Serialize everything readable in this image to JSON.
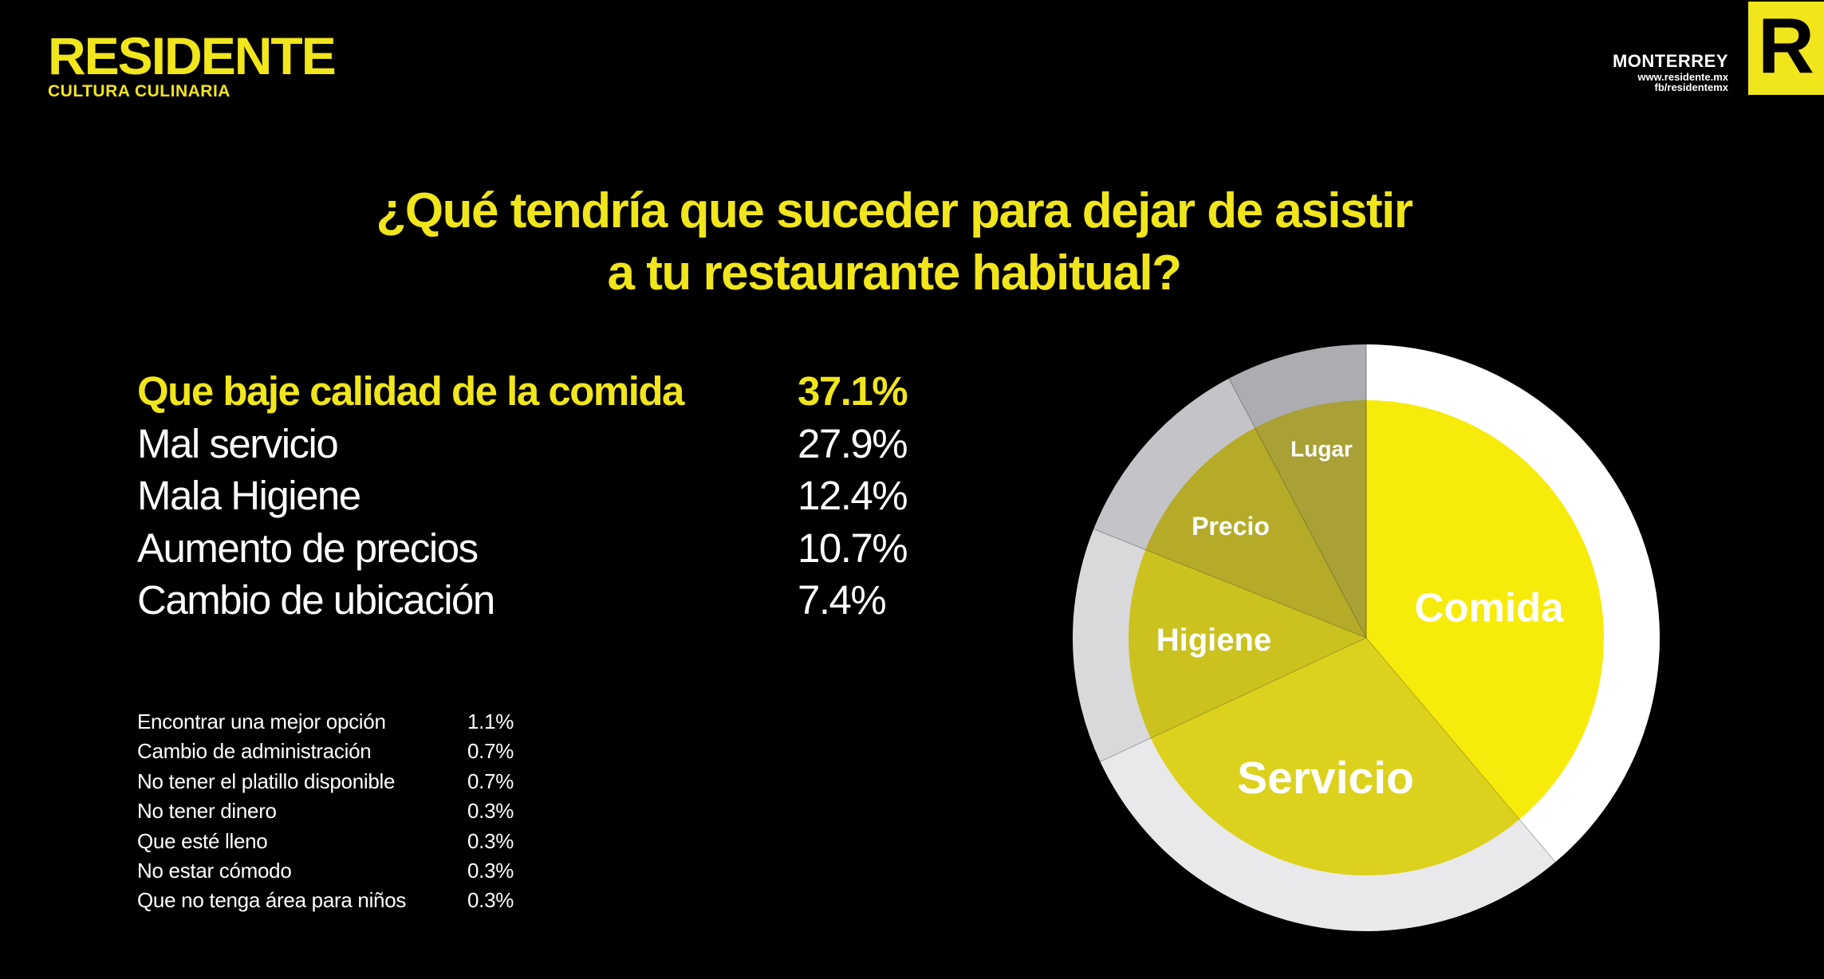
{
  "header": {
    "logo": {
      "title": "RESIDENTE",
      "subtitle": "CULTURA CULINARIA"
    },
    "publication": {
      "city": "MONTERREY",
      "website": "www.residente.mx",
      "facebook": "fb/residentemx"
    },
    "corner_badge": {
      "letter": "R"
    }
  },
  "title": {
    "line1": "¿Qué tendría que suceder para dejar de asistir",
    "line2": "a tu restaurante habitual?"
  },
  "main_list": {
    "items": [
      {
        "label": "Que baje calidad de la comida",
        "value": "37.1%",
        "highlight": true
      },
      {
        "label": "Mal servicio",
        "value": "27.9%",
        "highlight": false
      },
      {
        "label": "Mala Higiene",
        "value": "12.4%",
        "highlight": false
      },
      {
        "label": "Aumento de precios",
        "value": "10.7%",
        "highlight": false
      },
      {
        "label": "Cambio de ubicación",
        "value": "7.4%",
        "highlight": false
      }
    ]
  },
  "minor_list": {
    "items": [
      {
        "label": "Encontrar una mejor opción",
        "value": "1.1%"
      },
      {
        "label": "Cambio de administración",
        "value": "0.7%"
      },
      {
        "label": "No tener el platillo disponible",
        "value": "0.7%"
      },
      {
        "label": "No tener dinero",
        "value": "0.3%"
      },
      {
        "label": "Que esté lleno",
        "value": "0.3%"
      },
      {
        "label": "No estar cómodo",
        "value": "0.3%"
      },
      {
        "label": "Que no tenga área para niños",
        "value": "0.3%"
      }
    ]
  },
  "chart_data": {
    "type": "pie",
    "title": "¿Qué tendría que suceder para dejar de asistir a tu restaurante habitual?",
    "start_angle_deg": 0,
    "direction": "clockwise",
    "segments": [
      {
        "label": "Comida",
        "percent": 37.1,
        "color": "#F7EB0B",
        "ring_color": "#FFFFFF"
      },
      {
        "label": "Servicio",
        "percent": 27.9,
        "color": "#DCD11D",
        "ring_color": "#E9E9EB"
      },
      {
        "label": "Higiene",
        "percent": 12.4,
        "color": "#CBC21F",
        "ring_color": "#D9D9DC"
      },
      {
        "label": "Precio",
        "percent": 10.7,
        "color": "#B5AB29",
        "ring_color": "#C4C4C8"
      },
      {
        "label": "Lugar",
        "percent": 7.4,
        "color": "#A9A036",
        "ring_color": "#ACACB1"
      }
    ]
  },
  "colors": {
    "background": "#000000",
    "accent_yellow": "#F1E51C",
    "text_white": "#FFFFFF"
  }
}
